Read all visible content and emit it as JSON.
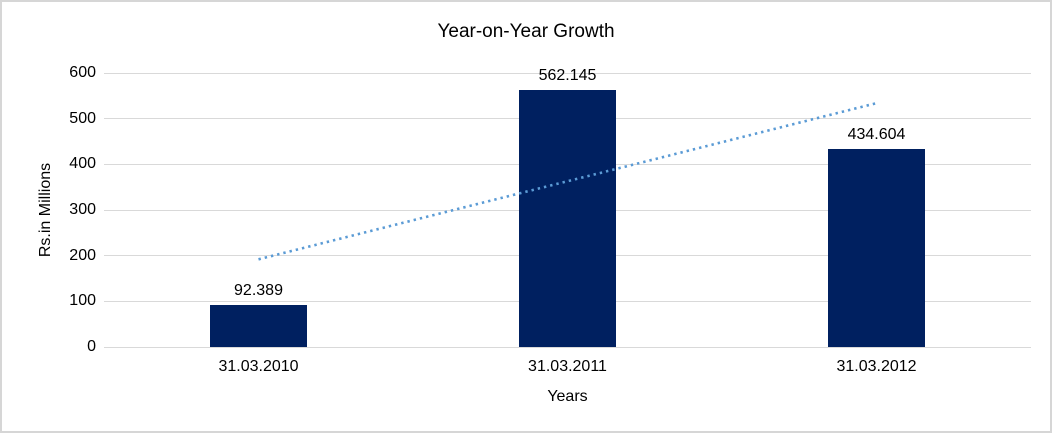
{
  "chart_data": {
    "type": "bar",
    "title": "Year-on-Year Growth",
    "xlabel": "Years",
    "ylabel": "Rs.in Millions",
    "categories": [
      "31.03.2010",
      "31.03.2011",
      "31.03.2012"
    ],
    "values": [
      92.389,
      562.145,
      434.604
    ],
    "data_labels": [
      "92.389",
      "562.145",
      "434.604"
    ],
    "ylim": [
      0,
      600
    ],
    "yticks": [
      0,
      100,
      200,
      300,
      400,
      500,
      600
    ],
    "grid": "horizontal",
    "legend": "none",
    "bar_color": "#002060",
    "gridline_color": "#d9d9d9",
    "trendline": {
      "type": "linear",
      "style": "dotted",
      "color": "#5b9bd5",
      "start_value": 192,
      "end_value": 534
    }
  }
}
